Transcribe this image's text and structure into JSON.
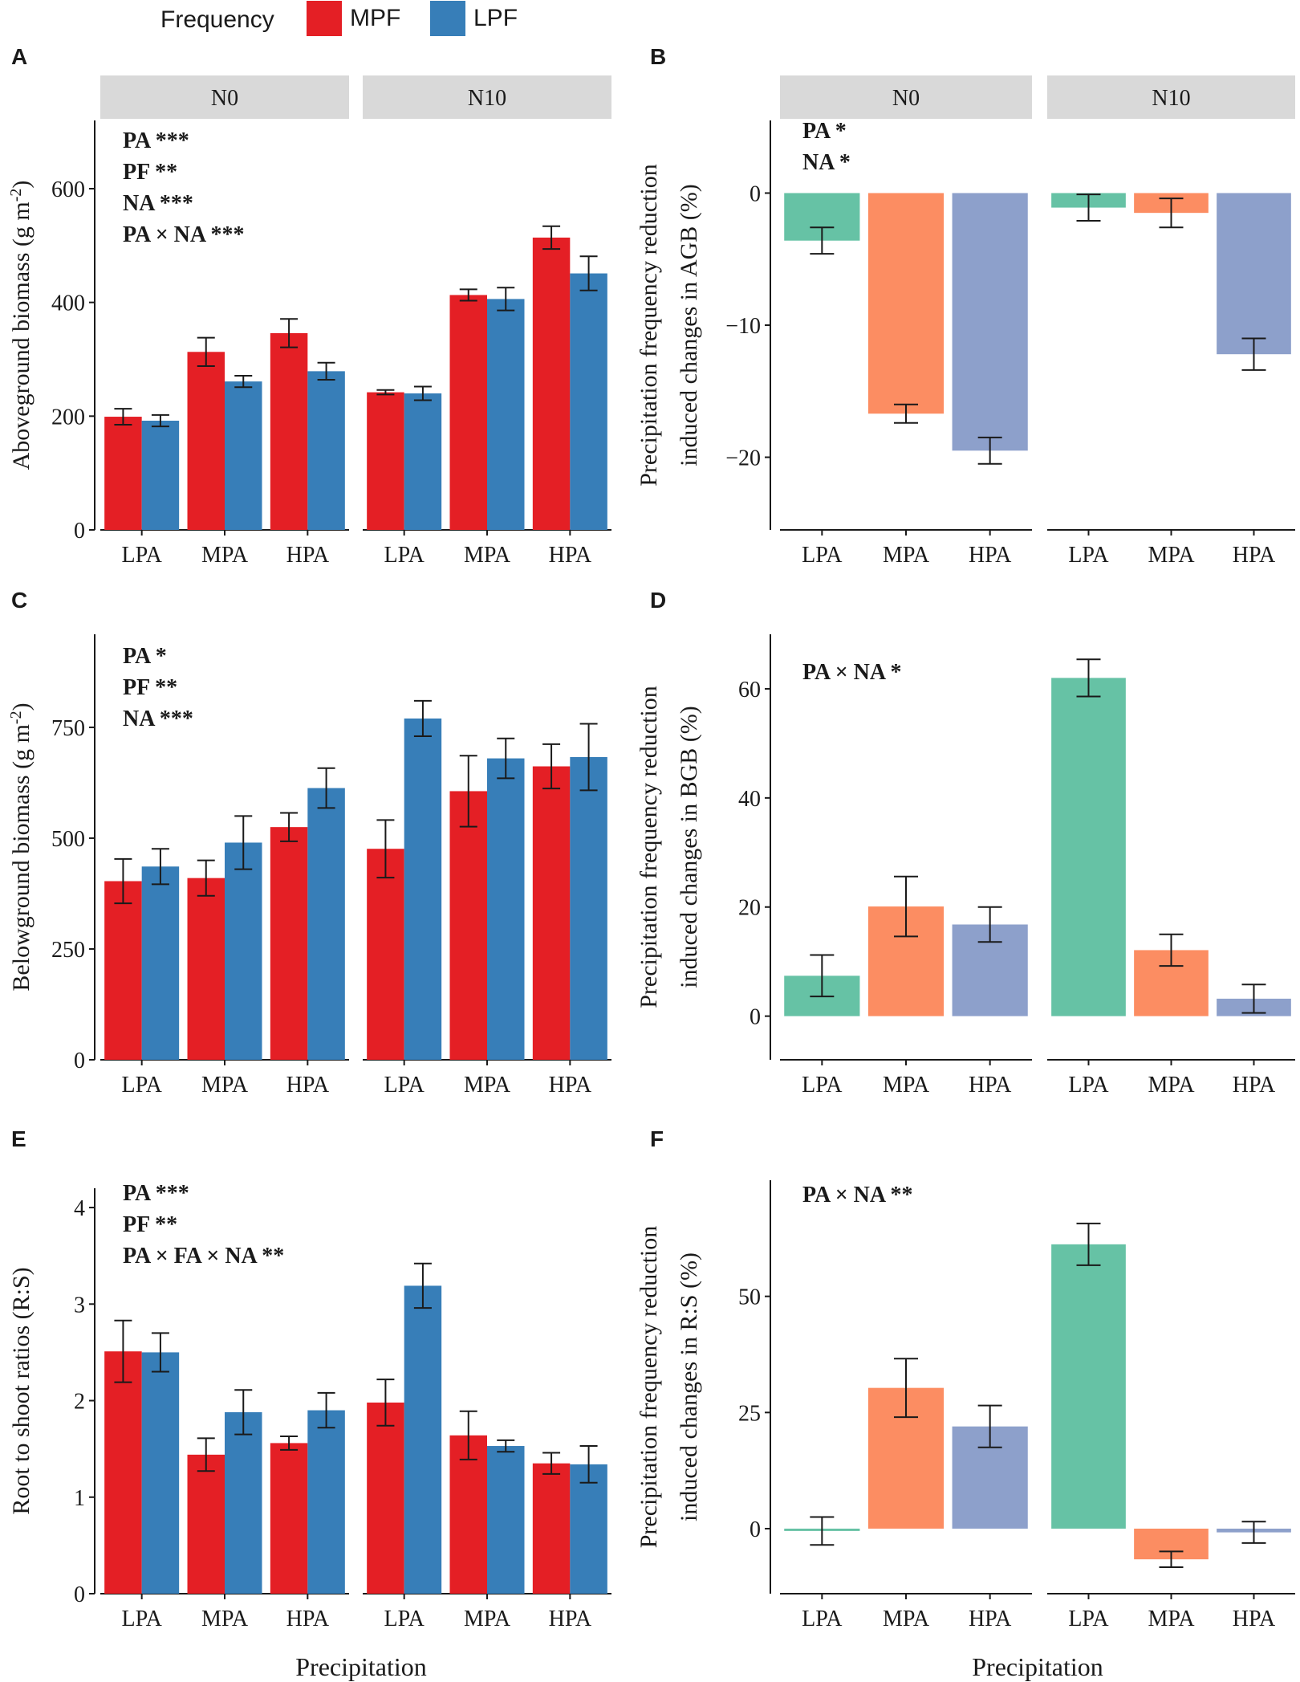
{
  "legend": {
    "title": "Frequency",
    "items": [
      {
        "label": "MPF",
        "color": "#E41F25"
      },
      {
        "label": "LPF",
        "color": "#377EB8"
      }
    ]
  },
  "x_title": "Precipitation",
  "facet_labels": [
    "N0",
    "N10"
  ],
  "categories": [
    "LPA",
    "MPA",
    "HPA"
  ],
  "treatment_colors": {
    "LPA": "#66C2A5",
    "MPA": "#FC8D62",
    "HPA": "#8DA0CB"
  },
  "chart_data": [
    {
      "panel": "A",
      "type": "bar",
      "ylabel": "Aboveground biomass",
      "ylabel_unit_base": "(g m",
      "ylabel_unit_sup": "-2",
      "ylabel_unit_end": ")",
      "ylim": [
        0,
        720
      ],
      "yticks": [
        0,
        200,
        400,
        600
      ],
      "series": [
        "MPF",
        "LPF"
      ],
      "annotations": [
        {
          "term": "PA",
          "sig": "***"
        },
        {
          "term": "PF",
          "sig": "**"
        },
        {
          "term": "NA",
          "sig": "***"
        },
        {
          "term": "PA × NA",
          "sig": "***"
        }
      ],
      "facets": [
        {
          "label": "N0",
          "values": {
            "MPF": [
              199,
              313,
              346
            ],
            "LPF": [
              192,
              261,
              279
            ]
          },
          "errors": {
            "MPF": [
              14,
              25,
              25
            ],
            "LPF": [
              10,
              10,
              15
            ]
          }
        },
        {
          "label": "N10",
          "values": {
            "MPF": [
              242,
              413,
              514
            ],
            "LPF": [
              240,
              406,
              451
            ]
          },
          "errors": {
            "MPF": [
              4,
              10,
              20
            ],
            "LPF": [
              12,
              20,
              30
            ]
          }
        }
      ]
    },
    {
      "panel": "B",
      "type": "bar",
      "ylabel": "Precipitation frequency reduction",
      "ylabel2": "induced changes in AGB (%)",
      "ylim": [
        -25.5,
        5.5
      ],
      "yticks": [
        -20,
        -10,
        0
      ],
      "annotations": [
        {
          "term": "PA",
          "sig": "*"
        },
        {
          "term": "NA",
          "sig": "*"
        }
      ],
      "facets": [
        {
          "label": "N0",
          "values": [
            -3.6,
            -16.7,
            -19.5
          ],
          "errors": [
            1.0,
            0.7,
            1.0
          ]
        },
        {
          "label": "N10",
          "values": [
            -1.1,
            -1.5,
            -12.2
          ],
          "errors": [
            1.0,
            1.1,
            1.2
          ]
        }
      ]
    },
    {
      "panel": "C",
      "type": "bar",
      "ylabel": "Belowground biomass",
      "ylabel_unit_base": "(g m",
      "ylabel_unit_sup": "-2",
      "ylabel_unit_end": ")",
      "ylim": [
        0,
        960
      ],
      "yticks": [
        0,
        250,
        500,
        750
      ],
      "series": [
        "MPF",
        "LPF"
      ],
      "annotations": [
        {
          "term": "PA",
          "sig": "*"
        },
        {
          "term": "PF",
          "sig": "**"
        },
        {
          "term": "NA",
          "sig": "***"
        }
      ],
      "facets": [
        {
          "label": "N0",
          "values": {
            "MPF": [
              403,
              410,
              525
            ],
            "LPF": [
              436,
              490,
              613
            ]
          },
          "errors": {
            "MPF": [
              50,
              40,
              32
            ],
            "LPF": [
              40,
              60,
              45
            ]
          }
        },
        {
          "label": "N10",
          "values": {
            "MPF": [
              476,
              606,
              662
            ],
            "LPF": [
              770,
              680,
              683
            ]
          },
          "errors": {
            "MPF": [
              65,
              80,
              50
            ],
            "LPF": [
              40,
              45,
              75
            ]
          }
        }
      ]
    },
    {
      "panel": "D",
      "type": "bar",
      "ylabel": "Precipitation frequency reduction",
      "ylabel2": "induced changes in BGB (%)",
      "ylim": [
        -8,
        70
      ],
      "yticks": [
        0,
        20,
        40,
        60
      ],
      "annotations": [
        {
          "term": "PA × NA",
          "sig": "*"
        }
      ],
      "facets": [
        {
          "label": "N0",
          "values": [
            7.4,
            20.1,
            16.8
          ],
          "errors": [
            3.8,
            5.5,
            3.2
          ]
        },
        {
          "label": "N10",
          "values": [
            62,
            12.1,
            3.2
          ],
          "errors": [
            3.4,
            2.9,
            2.6
          ]
        }
      ]
    },
    {
      "panel": "E",
      "type": "bar",
      "ylabel": "Root to shoot ratios",
      "ylabel_unit": "(R:S)",
      "ylim": [
        0,
        4.2
      ],
      "yticks": [
        0,
        1,
        2,
        3,
        4
      ],
      "series": [
        "MPF",
        "LPF"
      ],
      "annotations": [
        {
          "term": "PA",
          "sig": "***"
        },
        {
          "term": "PF",
          "sig": "**"
        },
        {
          "term": "PA × FA × NA",
          "sig": "**"
        }
      ],
      "facets": [
        {
          "label": "N0",
          "values": {
            "MPF": [
              2.51,
              1.44,
              1.56
            ],
            "LPF": [
              2.5,
              1.88,
              1.9
            ]
          },
          "errors": {
            "MPF": [
              0.32,
              0.17,
              0.07
            ],
            "LPF": [
              0.2,
              0.23,
              0.18
            ]
          }
        },
        {
          "label": "N10",
          "values": {
            "MPF": [
              1.98,
              1.64,
              1.35
            ],
            "LPF": [
              3.19,
              1.53,
              1.34
            ]
          },
          "errors": {
            "MPF": [
              0.24,
              0.25,
              0.11
            ],
            "LPF": [
              0.23,
              0.06,
              0.19
            ]
          }
        }
      ]
    },
    {
      "panel": "F",
      "type": "bar",
      "ylabel": "Precipitation frequency reduction",
      "ylabel2": "induced changes in R:S (%)",
      "ylim": [
        -14,
        75
      ],
      "yticks": [
        0,
        25,
        50
      ],
      "annotations": [
        {
          "term": "PA × NA",
          "sig": "**"
        }
      ],
      "facets": [
        {
          "label": "N0",
          "values": [
            -0.5,
            30.3,
            22
          ],
          "errors": [
            3.0,
            6.3,
            4.5
          ]
        },
        {
          "label": "N10",
          "values": [
            61.2,
            -6.6,
            -0.8
          ],
          "errors": [
            4.5,
            1.7,
            2.3
          ]
        }
      ]
    }
  ]
}
